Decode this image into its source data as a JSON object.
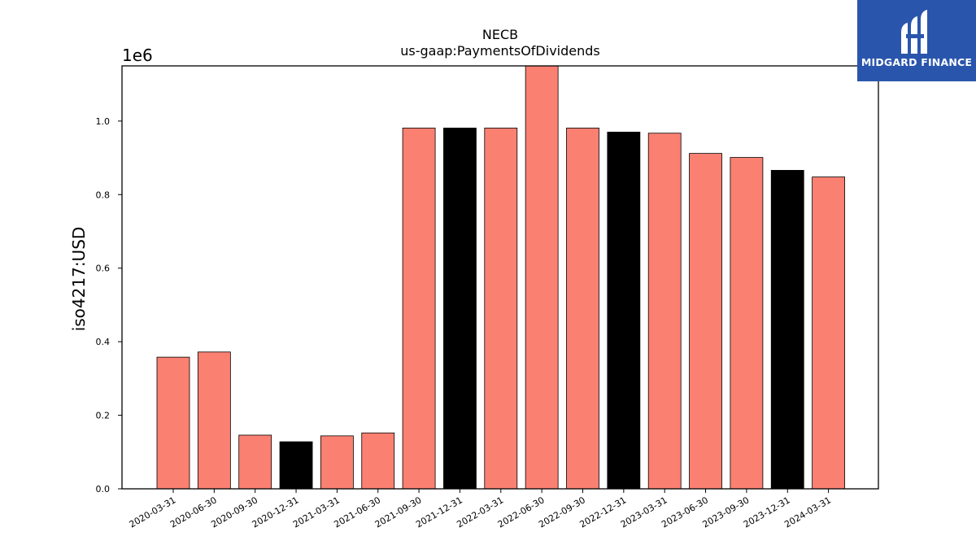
{
  "chart_data": {
    "type": "bar",
    "title": "NECB",
    "subtitle": "us-gaap:PaymentsOfDividends",
    "ylabel": "iso4217:USD",
    "y_offset_label": "1e6",
    "ylim": [
      0,
      1.15
    ],
    "yticks": [
      "0.0",
      "0.2",
      "0.4",
      "0.6",
      "0.8",
      "1.0"
    ],
    "categories": [
      "2020-03-31",
      "2020-06-30",
      "2020-09-30",
      "2020-12-31",
      "2021-03-31",
      "2021-06-30",
      "2021-09-30",
      "2021-12-31",
      "2022-03-31",
      "2022-06-30",
      "2022-09-30",
      "2022-12-31",
      "2023-03-31",
      "2023-06-30",
      "2023-09-30",
      "2023-12-31",
      "2024-03-31"
    ],
    "values": [
      0.358,
      0.372,
      0.146,
      0.128,
      0.144,
      0.152,
      0.981,
      0.981,
      0.981,
      1.16,
      0.981,
      0.97,
      0.967,
      0.912,
      0.901,
      0.866,
      0.848
    ],
    "bar_colors": [
      "#fa8072",
      "#fa8072",
      "#fa8072",
      "#000000",
      "#fa8072",
      "#fa8072",
      "#fa8072",
      "#000000",
      "#fa8072",
      "#fa8072",
      "#fa8072",
      "#000000",
      "#fa8072",
      "#fa8072",
      "#fa8072",
      "#000000",
      "#fa8072"
    ]
  },
  "logo": {
    "text": "MIDGARD FINANCE",
    "color": "#2a55ac"
  }
}
